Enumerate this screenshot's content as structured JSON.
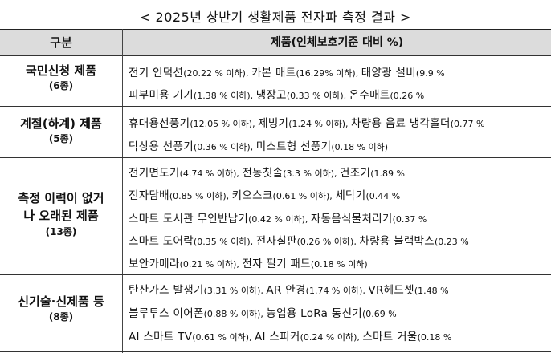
{
  "title": "< 2025년 상반기 생활제품 전자파 측정 결과 >",
  "header": {
    "category": "구분",
    "product": "제품(인체보호기준 대비 %)"
  },
  "groups": [
    {
      "category": "국민신청 제품",
      "count": "(6종)",
      "rows": [
        [
          [
            "전기 인덕션",
            "(20.22 % 이하), "
          ],
          [
            "카본 매트",
            "(16.29% 이하), "
          ],
          [
            "태양광 설비",
            "(9.9 % "
          ]
        ],
        [
          [
            "피부미용 기기",
            "(1.38 % 이하), "
          ],
          [
            "냉장고",
            "(0.33 % 이하), "
          ],
          [
            "온수매트",
            "(0.26 % "
          ]
        ]
      ]
    },
    {
      "category": "계절(하계) 제품",
      "count": "(5종)",
      "rows": [
        [
          [
            "휴대용선풍기",
            "(12.05 % 이하), "
          ],
          [
            "제빙기",
            "(1.24 % 이하), "
          ],
          [
            "차량용 음료 냉각홀더",
            "(0.77 % "
          ]
        ],
        [
          [
            "탁상용 선풍기",
            "(0.36 % 이하), "
          ],
          [
            "미스트형 선풍기",
            "(0.18 % 이하)"
          ]
        ]
      ]
    },
    {
      "category": "측정 이력이 없거나 오래된 제품",
      "count": "(13종)",
      "rows": [
        [
          [
            "전기면도기",
            "(4.74 % 이하), "
          ],
          [
            "전동칫솔",
            "(3.3 % 이하), "
          ],
          [
            "건조기",
            "(1.89 % "
          ]
        ],
        [
          [
            "전자담배",
            "(0.85 % 이하), "
          ],
          [
            "키오스크",
            "(0.61 % 이하), "
          ],
          [
            "세탁기",
            "(0.44 % "
          ]
        ],
        [
          [
            "스마트 도서관 무인반납기",
            "(0.42 % 이하), "
          ],
          [
            "자동음식물처리기",
            "(0.37 % "
          ]
        ],
        [
          [
            "스마트 도어락",
            "(0.35 % 이하), "
          ],
          [
            "전자칠판",
            "(0.26 % 이하), "
          ],
          [
            "차량용 블랙박스",
            "(0.23 % "
          ]
        ],
        [
          [
            "보안카메라",
            "(0.21 % 이하), "
          ],
          [
            "전자 필기 패드",
            "(0.18 % 이하)"
          ]
        ]
      ]
    },
    {
      "category": "신기술·신제품 등",
      "count": "(8종)",
      "rows": [
        [
          [
            "탄산가스 발생기",
            "(3.31 % 이하), "
          ],
          [
            "AR 안경",
            "(1.74 % 이하), "
          ],
          [
            "VR헤드셋",
            "(1.48 % "
          ]
        ],
        [
          [
            "블루투스 이어폰",
            "(0.88 % 이하), "
          ],
          [
            "농업용 LoRa 통신기",
            "(0.69 % "
          ]
        ],
        [
          [
            "AI 스마트 TV",
            "(0.61 % 이하), "
          ],
          [
            "AI 스피커",
            "(0.24 % 이하), "
          ],
          [
            "스마트 거울",
            "(0.18 % "
          ]
        ]
      ]
    }
  ]
}
